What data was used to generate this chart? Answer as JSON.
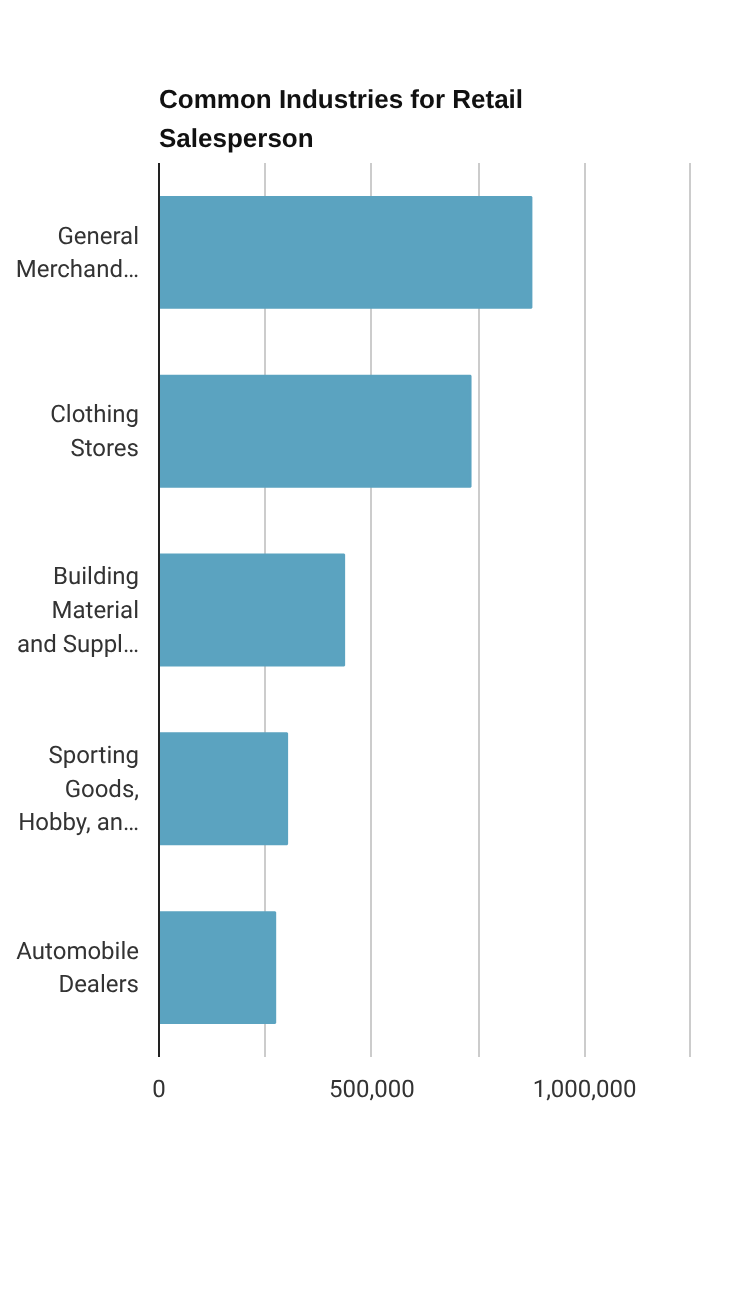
{
  "chart_data": {
    "type": "bar",
    "orientation": "horizontal",
    "title": "Common Industries for Retail Salesperson",
    "categories": [
      "General Merchand…",
      "Clothing Stores",
      "Building Material and Suppl…",
      "Sporting Goods, Hobby, an…",
      "Automobile Dealers"
    ],
    "values": [
      875000,
      732000,
      435000,
      301000,
      273000
    ],
    "color": "#5ba3c0",
    "xlim": [
      0,
      1250000
    ],
    "xticks": [
      0,
      {
        "value": 250000,
        "label": null
      },
      {
        "value": 500000,
        "label": "500,000"
      },
      {
        "value": 750000,
        "label": null
      },
      {
        "value": 1000000,
        "label": "1,000,000"
      }
    ],
    "grid": "x"
  }
}
